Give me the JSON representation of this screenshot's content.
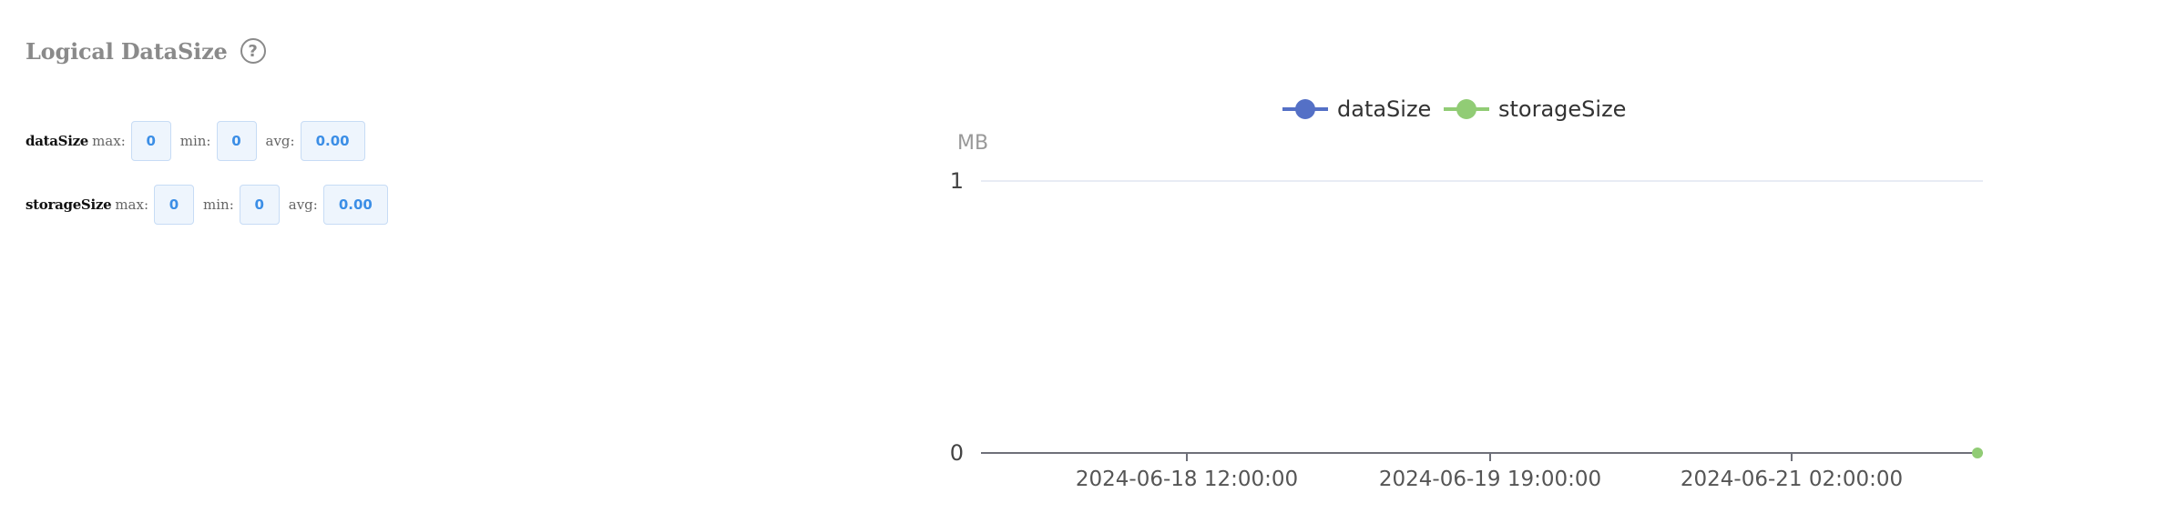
{
  "header": {
    "title": "Logical DataSize",
    "help_icon": "question-circle-icon"
  },
  "stats": {
    "labels": {
      "max": "max:",
      "min": "min:",
      "avg": "avg:"
    },
    "rows": [
      {
        "name": "dataSize",
        "max": "0",
        "min": "0",
        "avg": "0.00"
      },
      {
        "name": "storageSize",
        "max": "0",
        "min": "0",
        "avg": "0.00"
      }
    ]
  },
  "colors": {
    "dataSize": "#5470c6",
    "storageSize": "#91cc75",
    "value_text": "#3b8ee6",
    "value_bg": "#eef5fd"
  },
  "chart_data": {
    "type": "line",
    "ylabel": "MB",
    "ylim": [
      0,
      1
    ],
    "yticks": [
      "0",
      "1"
    ],
    "xticks": [
      "2024-06-18 12:00:00",
      "2024-06-19 19:00:00",
      "2024-06-21 02:00:00"
    ],
    "legend_position": "top-center",
    "grid": true,
    "series": [
      {
        "name": "dataSize",
        "color": "#5470c6",
        "points": []
      },
      {
        "name": "storageSize",
        "color": "#91cc75",
        "points": [
          {
            "x": "end",
            "y": 0
          }
        ]
      }
    ]
  }
}
